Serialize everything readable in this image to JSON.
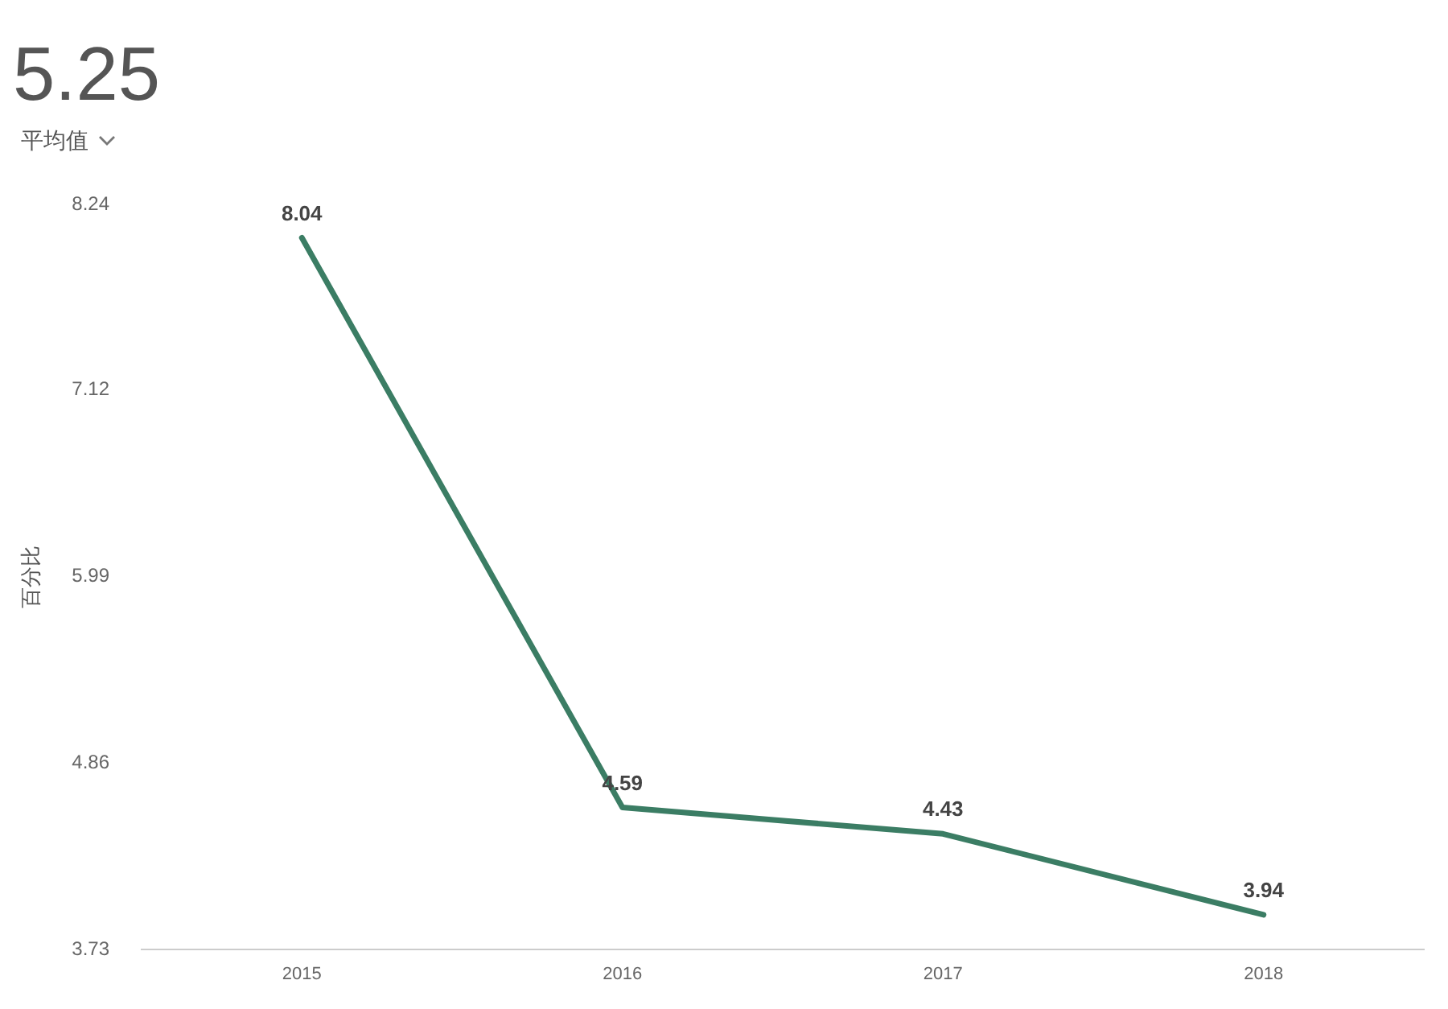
{
  "chart_data": {
    "type": "line",
    "title": "5.25",
    "subtitle": "平均值",
    "ylabel": "百分比",
    "categories": [
      "2015",
      "2016",
      "2017",
      "2018"
    ],
    "series": [
      {
        "color": "#3b7d64",
        "values": [
          8.04,
          4.59,
          4.43,
          3.94
        ]
      }
    ],
    "ylim": [
      3.73,
      8.24
    ],
    "yticks": [
      3.73,
      4.86,
      5.99,
      7.12,
      8.24
    ],
    "grid": false,
    "marker": "none",
    "data_labels": true
  }
}
